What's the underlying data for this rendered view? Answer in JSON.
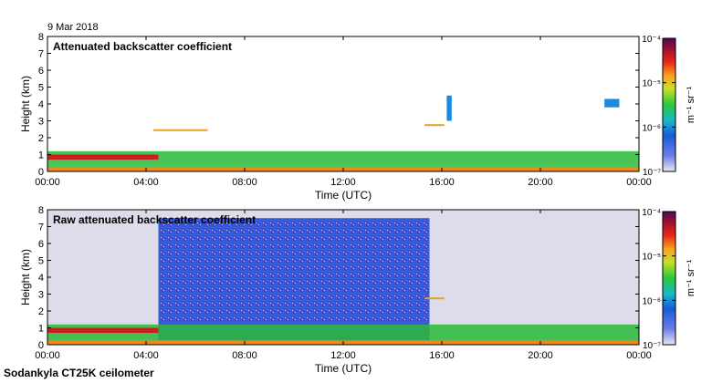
{
  "header": {
    "date": "9 Mar 2018"
  },
  "footer": {
    "instrument": "Sodankyla CT25K ceilometer"
  },
  "chart_data": [
    {
      "type": "heatmap",
      "title": "Attenuated backscatter coefficient",
      "xlabel": "Time (UTC)",
      "ylabel": "Height (km)",
      "xlim": [
        0,
        24
      ],
      "ylim": [
        0,
        8
      ],
      "x_ticks": [
        "00:00",
        "04:00",
        "08:00",
        "12:00",
        "16:00",
        "20:00",
        "00:00"
      ],
      "y_ticks": [
        "0",
        "1",
        "2",
        "3",
        "4",
        "5",
        "6",
        "7",
        "8"
      ],
      "colorbar": {
        "scale": "log",
        "label": "m⁻¹ sr⁻¹",
        "ticks": [
          "10⁻⁷",
          "10⁻⁶",
          "10⁻⁵",
          "10⁻⁴"
        ],
        "range": [
          1e-07,
          0.0001
        ]
      },
      "features": [
        {
          "name": "boundary layer",
          "time_h": [
            0,
            24
          ],
          "height_km": [
            0,
            1.2
          ]
        },
        {
          "name": "low cloud",
          "time_h": [
            0,
            4.5
          ],
          "height_km": [
            0.7,
            1.0
          ]
        },
        {
          "name": "cloud layer",
          "time_h": [
            4.3,
            6.5
          ],
          "height_km": [
            2.4,
            2.5
          ]
        },
        {
          "name": "cloud layer",
          "time_h": [
            15.3,
            16.1
          ],
          "height_km": [
            2.7,
            2.8
          ]
        },
        {
          "name": "elevated signal",
          "time_h": [
            16.2,
            16.4
          ],
          "height_km": [
            3.0,
            4.5
          ]
        },
        {
          "name": "elevated signal",
          "time_h": [
            22.6,
            23.2
          ],
          "height_km": [
            3.8,
            4.3
          ]
        }
      ]
    },
    {
      "type": "heatmap",
      "title": "Raw attenuated backscatter coefficient",
      "xlabel": "Time (UTC)",
      "ylabel": "Height (km)",
      "xlim": [
        0,
        24
      ],
      "ylim": [
        0,
        8
      ],
      "x_ticks": [
        "00:00",
        "04:00",
        "08:00",
        "12:00",
        "16:00",
        "20:00",
        "00:00"
      ],
      "y_ticks": [
        "0",
        "1",
        "2",
        "3",
        "4",
        "5",
        "6",
        "7",
        "8"
      ],
      "colorbar": {
        "scale": "log",
        "label": "m⁻¹ sr⁻¹",
        "ticks": [
          "10⁻⁷",
          "10⁻⁶",
          "10⁻⁵",
          "10⁻⁴"
        ],
        "range": [
          1e-07,
          0.0001
        ]
      },
      "features": [
        {
          "name": "noise (sun)",
          "time_h": [
            4.5,
            15.5
          ],
          "height_km": [
            0,
            7.5
          ]
        },
        {
          "name": "boundary layer",
          "time_h": [
            0,
            24
          ],
          "height_km": [
            0,
            1.2
          ]
        },
        {
          "name": "low cloud",
          "time_h": [
            0,
            4.5
          ],
          "height_km": [
            0.7,
            1.0
          ]
        },
        {
          "name": "cloud layer",
          "time_h": [
            15.3,
            16.1
          ],
          "height_km": [
            2.7,
            2.8
          ]
        }
      ]
    }
  ]
}
